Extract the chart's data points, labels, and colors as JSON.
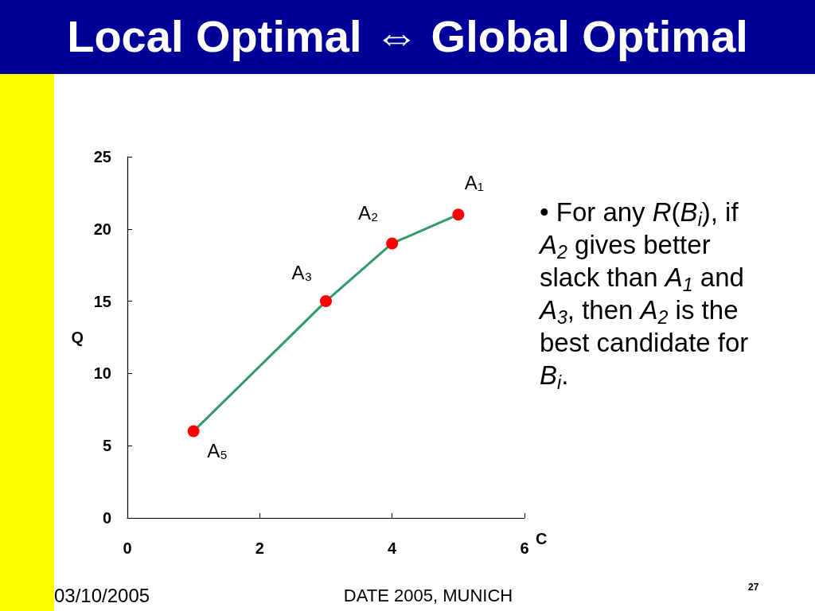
{
  "chart_data": {
    "type": "line",
    "title": "Local Optimal ⇔ Global Optimal",
    "xlabel": "C",
    "ylabel": "Q",
    "x": [
      1,
      3,
      4,
      5
    ],
    "values": [
      6,
      15,
      19,
      21
    ],
    "color": "#339966",
    "colors": [
      "#ff0000",
      "#ff0000",
      "#ff0000",
      "#ff0000"
    ],
    "marker": "circle",
    "xlim": [
      0,
      6
    ],
    "xticks": [
      0,
      2,
      4,
      6
    ],
    "ylim": [
      0,
      25
    ],
    "yticks": [
      0,
      5,
      10,
      15,
      20,
      25
    ],
    "annotations": [
      {
        "text": "A₅",
        "x": 1,
        "y": 6
      },
      {
        "text": "A₃",
        "x": 3,
        "y": 15
      },
      {
        "text": "A₂",
        "x": 4,
        "y": 19
      },
      {
        "text": "A₁",
        "x": 5,
        "y": 21
      },
      "• For any R(B$_{i}$), if A$_{2}$ gives better slack than A$_{1}$ and A$_{3}$, then A$_{2}$ is the best candidate for B$_{i}$.",
      "03/10/2005",
      "DATE 2005, MUNICH",
      "27"
    ]
  }
}
